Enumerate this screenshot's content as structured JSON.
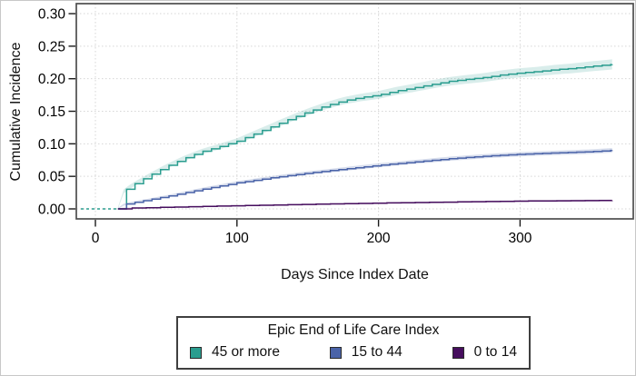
{
  "chart_data": {
    "type": "line",
    "subtype": "cumulative-incidence-step",
    "title": "",
    "xlabel": "Days Since Index Date",
    "ylabel": "Cumulative Incidence",
    "x_ticks": [
      0,
      100,
      200,
      300
    ],
    "y_ticks": [
      "0.00",
      "0.05",
      "0.10",
      "0.15",
      "0.20",
      "0.25",
      "0.30"
    ],
    "xlim": [
      0,
      365
    ],
    "ylim": [
      0,
      0.3
    ],
    "grid": "dotted",
    "grid_color": "#d6d6d6",
    "box_color": "#4d4d4d",
    "legend": {
      "title": "Epic End of Life Care Index",
      "position": "bottom"
    },
    "series": [
      {
        "name": "45 or more",
        "color": "#2a9d8f",
        "band_opacity": 0.18,
        "lead_dashed_at_zero": true,
        "points": [
          [
            0,
            0
          ],
          [
            16,
            0
          ],
          [
            17,
            0.022
          ],
          [
            25,
            0.035
          ],
          [
            37,
            0.05
          ],
          [
            50,
            0.065
          ],
          [
            62,
            0.077
          ],
          [
            75,
            0.088
          ],
          [
            88,
            0.096
          ],
          [
            100,
            0.104
          ],
          [
            112,
            0.115
          ],
          [
            125,
            0.127
          ],
          [
            137,
            0.138
          ],
          [
            150,
            0.149
          ],
          [
            162,
            0.158
          ],
          [
            175,
            0.166
          ],
          [
            187,
            0.171
          ],
          [
            200,
            0.175
          ],
          [
            212,
            0.181
          ],
          [
            225,
            0.186
          ],
          [
            237,
            0.191
          ],
          [
            250,
            0.196
          ],
          [
            262,
            0.199
          ],
          [
            275,
            0.202
          ],
          [
            287,
            0.206
          ],
          [
            300,
            0.209
          ],
          [
            312,
            0.211
          ],
          [
            325,
            0.214
          ],
          [
            337,
            0.216
          ],
          [
            350,
            0.219
          ],
          [
            365,
            0.222
          ]
        ],
        "band_halfwidth": [
          [
            16,
            0.003
          ],
          [
            100,
            0.0045
          ],
          [
            200,
            0.006
          ],
          [
            365,
            0.0078
          ]
        ]
      },
      {
        "name": "15 to 44",
        "color": "#4a63a8",
        "band_opacity": 0.22,
        "lead_dashed_at_zero": false,
        "points": [
          [
            0,
            0
          ],
          [
            16,
            0
          ],
          [
            17,
            0.005
          ],
          [
            25,
            0.009
          ],
          [
            50,
            0.019
          ],
          [
            75,
            0.03
          ],
          [
            100,
            0.04
          ],
          [
            125,
            0.048
          ],
          [
            150,
            0.055
          ],
          [
            175,
            0.061
          ],
          [
            200,
            0.067
          ],
          [
            225,
            0.072
          ],
          [
            250,
            0.077
          ],
          [
            275,
            0.081
          ],
          [
            300,
            0.084
          ],
          [
            325,
            0.086
          ],
          [
            350,
            0.088
          ],
          [
            365,
            0.09
          ]
        ],
        "band_halfwidth": [
          [
            16,
            0.0015
          ],
          [
            100,
            0.0025
          ],
          [
            200,
            0.003
          ],
          [
            365,
            0.0035
          ]
        ]
      },
      {
        "name": "0 to 14",
        "color": "#460e5e",
        "band_opacity": 0.15,
        "lead_dashed_at_zero": false,
        "points": [
          [
            0,
            0
          ],
          [
            16,
            0
          ],
          [
            17,
            0.001
          ],
          [
            50,
            0.0025
          ],
          [
            100,
            0.005
          ],
          [
            150,
            0.007
          ],
          [
            200,
            0.009
          ],
          [
            250,
            0.0105
          ],
          [
            300,
            0.012
          ],
          [
            365,
            0.013
          ]
        ],
        "band_halfwidth": [
          [
            16,
            0.0008
          ],
          [
            365,
            0.0015
          ]
        ]
      }
    ]
  }
}
